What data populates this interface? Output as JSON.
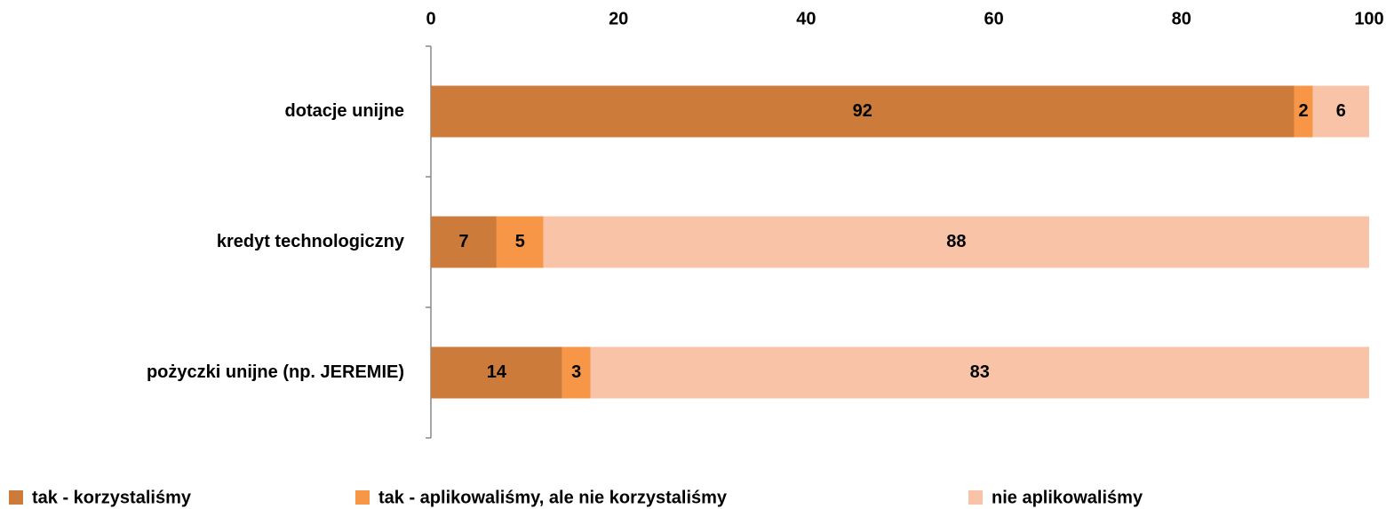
{
  "chart_data": {
    "type": "bar",
    "orientation": "horizontal",
    "stacked": true,
    "categories": [
      "dotacje unijne",
      "kredyt technologiczny",
      "pożyczki unijne (np. JEREMIE)"
    ],
    "series": [
      {
        "name": "tak - korzystaliśmy",
        "color": "#cd7b3a",
        "values": [
          92,
          7,
          14
        ]
      },
      {
        "name": "tak - aplikowaliśmy, ale nie korzystaliśmy",
        "color": "#f79646",
        "values": [
          2,
          5,
          3
        ]
      },
      {
        "name": "nie aplikowaliśmy",
        "color": "#f9c3a8",
        "values": [
          6,
          88,
          83
        ]
      }
    ],
    "xlim": [
      0,
      100
    ],
    "xticks": [
      0,
      20,
      40,
      60,
      80,
      100
    ],
    "grid": false,
    "legend": "bottom"
  }
}
